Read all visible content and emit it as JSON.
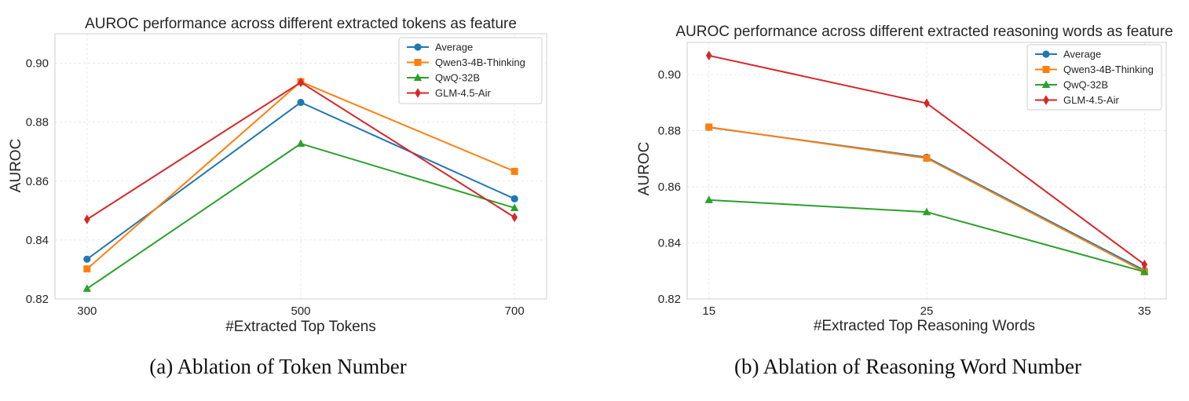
{
  "colors": {
    "Average": "#1f77b4",
    "Qwen3-4B-Thinking": "#ff7f0e",
    "QwQ-32B": "#2ca02c",
    "GLM-4.5-Air": "#d62728"
  },
  "markers": {
    "Average": "circle",
    "Qwen3-4B-Thinking": "square",
    "QwQ-32B": "triangle",
    "GLM-4.5-Air": "diamond"
  },
  "chart_data": [
    {
      "type": "line",
      "title": "AUROC performance across different extracted tokens as feature",
      "xlabel": "#Extracted Top Tokens",
      "ylabel": "AUROC",
      "caption": "(a)  Ablation of Token Number",
      "x": [
        300,
        500,
        700
      ],
      "xtick_labels": [
        "300",
        "500",
        "700"
      ],
      "xlim": [
        270,
        730
      ],
      "ylim": [
        0.82,
        0.91
      ],
      "yticks": [
        0.82,
        0.84,
        0.86,
        0.88,
        0.9
      ],
      "ytick_labels": [
        "0.82",
        "0.84",
        "0.86",
        "0.88",
        "0.90"
      ],
      "grid": true,
      "legend_position": "top-right",
      "series": [
        {
          "name": "Average",
          "values": [
            0.8335,
            0.8867,
            0.854
          ]
        },
        {
          "name": "Qwen3-4B-Thinking",
          "values": [
            0.8302,
            0.8937,
            0.8633
          ]
        },
        {
          "name": "QwQ-32B",
          "values": [
            0.8235,
            0.8727,
            0.8509
          ]
        },
        {
          "name": "GLM-4.5-Air",
          "values": [
            0.847,
            0.8935,
            0.8477
          ]
        }
      ]
    },
    {
      "type": "line",
      "title": "AUROC performance across different extracted reasoning words as feature",
      "xlabel": "#Extracted Top Reasoning Words",
      "ylabel": "AUROC",
      "caption": "(b)  Ablation of Reasoning Word Number",
      "x": [
        15,
        25,
        35
      ],
      "xtick_labels": [
        "15",
        "25",
        "35"
      ],
      "xlim": [
        14,
        36
      ],
      "ylim": [
        0.82,
        0.9115
      ],
      "yticks": [
        0.82,
        0.84,
        0.86,
        0.88,
        0.9
      ],
      "ytick_labels": [
        "0.82",
        "0.84",
        "0.86",
        "0.88",
        "0.90"
      ],
      "grid": true,
      "legend_position": "top-right",
      "series": [
        {
          "name": "Average",
          "values": [
            0.8812,
            0.8705,
            0.8302
          ]
        },
        {
          "name": "Qwen3-4B-Thinking",
          "values": [
            0.8813,
            0.8702,
            0.8297
          ]
        },
        {
          "name": "QwQ-32B",
          "values": [
            0.8553,
            0.851,
            0.8297
          ]
        },
        {
          "name": "GLM-4.5-Air",
          "values": [
            0.9068,
            0.8898,
            0.8323
          ]
        }
      ]
    }
  ]
}
